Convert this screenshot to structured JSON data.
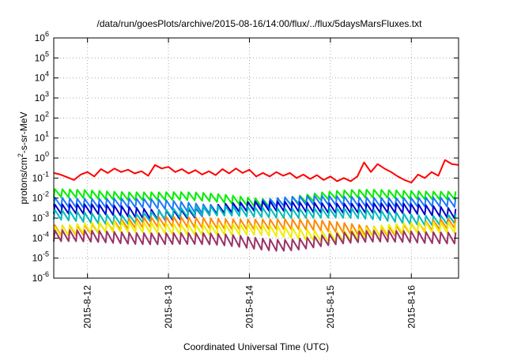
{
  "chart_data": {
    "type": "line",
    "title": "/data/run/goesPlots/archive/2015-08-16/14:00/flux/../flux/5daysMarsFluxes.txt",
    "xlabel": "Coordinated Universal Time (UTC)",
    "ylabel_base": "protons/cm",
    "ylabel_sup": "2",
    "ylabel_tail": "-s-sr-MeV",
    "yscale": "log",
    "ylim": [
      1e-06,
      1000000.0
    ],
    "y_ticks": [
      {
        "base": "10",
        "exp": "6",
        "value": 1000000.0
      },
      {
        "base": "10",
        "exp": "5",
        "value": 100000.0
      },
      {
        "base": "10",
        "exp": "4",
        "value": 10000.0
      },
      {
        "base": "10",
        "exp": "3",
        "value": 1000.0
      },
      {
        "base": "10",
        "exp": "2",
        "value": 100.0
      },
      {
        "base": "10",
        "exp": "1",
        "value": 10.0
      },
      {
        "base": "10",
        "exp": "0",
        "value": 1.0
      },
      {
        "base": "10",
        "exp": "-1",
        "value": 0.1
      },
      {
        "base": "10",
        "exp": "-2",
        "value": 0.01
      },
      {
        "base": "10",
        "exp": "-3",
        "value": 0.001
      },
      {
        "base": "10",
        "exp": "-4",
        "value": 0.0001
      },
      {
        "base": "10",
        "exp": "-5",
        "value": 1e-05
      },
      {
        "base": "10",
        "exp": "-6",
        "value": 1e-06
      }
    ],
    "xlim": [
      "2015-08-11T14:00",
      "2015-08-16T14:00"
    ],
    "x_ticks": [
      {
        "label": "2015-8-12",
        "date": "2015-08-12T00:00"
      },
      {
        "label": "2015-8-13",
        "date": "2015-08-13T00:00"
      },
      {
        "label": "2015-8-14",
        "date": "2015-08-14T00:00"
      },
      {
        "label": "2015-8-15",
        "date": "2015-08-15T00:00"
      },
      {
        "label": "2015-8-16",
        "date": "2015-08-16T00:00"
      }
    ],
    "grid": true,
    "legend": "none",
    "series": [
      {
        "color": "#ff0000",
        "x": [
          "2015-08-11T14:00",
          "2015-08-11T16:00",
          "2015-08-11T18:00",
          "2015-08-11T20:00",
          "2015-08-11T22:00",
          "2015-08-12T00:00",
          "2015-08-12T02:00",
          "2015-08-12T04:00",
          "2015-08-12T06:00",
          "2015-08-12T08:00",
          "2015-08-12T10:00",
          "2015-08-12T12:00",
          "2015-08-12T14:00",
          "2015-08-12T16:00",
          "2015-08-12T18:00",
          "2015-08-12T20:00",
          "2015-08-12T22:00",
          "2015-08-13T00:00",
          "2015-08-13T02:00",
          "2015-08-13T04:00",
          "2015-08-13T06:00",
          "2015-08-13T08:00",
          "2015-08-13T10:00",
          "2015-08-13T12:00",
          "2015-08-13T14:00",
          "2015-08-13T16:00",
          "2015-08-13T18:00",
          "2015-08-13T20:00",
          "2015-08-13T22:00",
          "2015-08-14T00:00",
          "2015-08-14T02:00",
          "2015-08-14T04:00",
          "2015-08-14T06:00",
          "2015-08-14T08:00",
          "2015-08-14T10:00",
          "2015-08-14T12:00",
          "2015-08-14T14:00",
          "2015-08-14T16:00",
          "2015-08-14T18:00",
          "2015-08-14T20:00",
          "2015-08-14T22:00",
          "2015-08-15T00:00",
          "2015-08-15T02:00",
          "2015-08-15T04:00",
          "2015-08-15T06:00",
          "2015-08-15T08:00",
          "2015-08-15T10:00",
          "2015-08-15T12:00",
          "2015-08-15T14:00",
          "2015-08-15T16:00",
          "2015-08-15T18:00",
          "2015-08-15T20:00",
          "2015-08-15T22:00",
          "2015-08-16T00:00",
          "2015-08-16T02:00",
          "2015-08-16T04:00",
          "2015-08-16T06:00",
          "2015-08-16T08:00",
          "2015-08-16T10:00",
          "2015-08-16T12:00",
          "2015-08-16T14:00"
        ],
        "y": [
          0.18,
          0.15,
          0.11,
          0.08,
          0.15,
          0.2,
          0.12,
          0.28,
          0.18,
          0.3,
          0.2,
          0.26,
          0.17,
          0.22,
          0.13,
          0.45,
          0.3,
          0.36,
          0.2,
          0.28,
          0.17,
          0.25,
          0.15,
          0.22,
          0.14,
          0.28,
          0.17,
          0.3,
          0.18,
          0.26,
          0.12,
          0.18,
          0.12,
          0.2,
          0.13,
          0.18,
          0.1,
          0.15,
          0.09,
          0.14,
          0.08,
          0.12,
          0.07,
          0.1,
          0.07,
          0.12,
          0.6,
          0.2,
          0.5,
          0.3,
          0.2,
          0.12,
          0.08,
          0.06,
          0.15,
          0.1,
          0.2,
          0.13,
          0.8,
          0.5,
          0.45
        ]
      },
      {
        "color": "#00ee00",
        "base": 0.012,
        "amp": 2.5
      },
      {
        "color": "#1e78ff",
        "base": 0.0055,
        "amp": 2.8
      },
      {
        "color": "#0000cc",
        "base": 0.0028,
        "amp": 3.0
      },
      {
        "color": "#00bbbb",
        "base": 0.0016,
        "amp": 3.0
      },
      {
        "color": "#ff8800",
        "base": 0.00045,
        "amp": 3.2
      },
      {
        "color": "#eeee00",
        "base": 0.00025,
        "amp": 3.3
      },
      {
        "color": "#993366",
        "base": 9e-05,
        "amp": 3.6
      }
    ]
  }
}
